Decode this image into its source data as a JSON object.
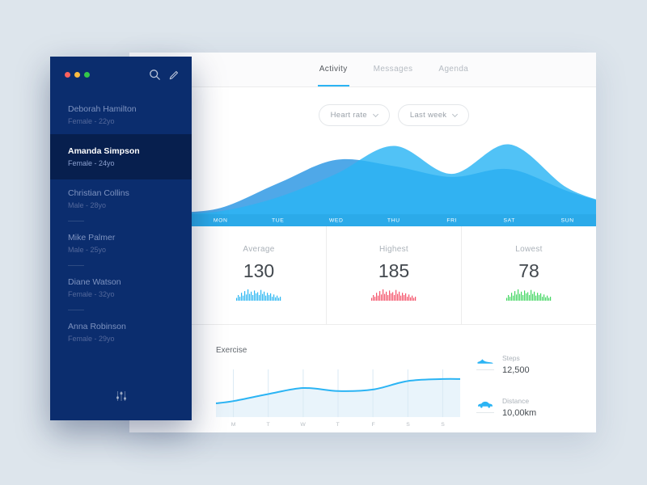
{
  "window": {
    "controls": [
      {
        "name": "close",
        "color": "#FC605C"
      },
      {
        "name": "minimize",
        "color": "#FDBC40"
      },
      {
        "name": "maximize",
        "color": "#34C749"
      }
    ]
  },
  "sidebar": {
    "patients": [
      {
        "name": "Deborah Hamilton",
        "meta": "Female - 22yo",
        "selected": false,
        "divider": false
      },
      {
        "name": "Amanda Simpson",
        "meta": "Female - 24yo",
        "selected": true,
        "divider": false
      },
      {
        "name": "Christian Collins",
        "meta": "Male - 28yo",
        "selected": false,
        "divider": true
      },
      {
        "name": "Mike Palmer",
        "meta": "Male - 25yo",
        "selected": false,
        "divider": true
      },
      {
        "name": "Diane Watson",
        "meta": "Female - 32yo",
        "selected": false,
        "divider": true
      },
      {
        "name": "Anna Robinson",
        "meta": "Female - 29yo",
        "selected": false,
        "divider": false
      }
    ]
  },
  "header": {
    "tabs": [
      {
        "label": "Activity",
        "active": true
      },
      {
        "label": "Messages",
        "active": false
      },
      {
        "label": "Agenda",
        "active": false
      }
    ]
  },
  "filters": {
    "metric": "Heart rate",
    "range": "Last week"
  },
  "chart_data": [
    {
      "type": "area",
      "title": "Heart rate - Last week",
      "x": [
        "MON",
        "TUE",
        "WED",
        "THU",
        "FRI",
        "SAT",
        "SUN"
      ],
      "series": [
        {
          "name": "heart-rate-layer-back",
          "color": "#4FA8E8",
          "values": [
            8,
            40,
            70,
            62,
            48,
            58,
            30
          ]
        },
        {
          "name": "heart-rate-layer-front",
          "color": "#2BB5F4",
          "values": [
            4,
            22,
            52,
            88,
            52,
            90,
            34
          ]
        }
      ],
      "ylim": [
        0,
        100
      ],
      "legend": "none",
      "grid": false
    },
    {
      "type": "line",
      "title": "Exercise",
      "x": [
        "M",
        "T",
        "W",
        "T",
        "F",
        "S",
        "S"
      ],
      "series": [
        {
          "name": "exercise",
          "color": "#2BB4F4",
          "fill": "#E9F4FB",
          "values": [
            32,
            46,
            58,
            52,
            55,
            72,
            76
          ]
        }
      ],
      "ylim": [
        0,
        100
      ],
      "legend": "none",
      "grid": true
    }
  ],
  "stats": [
    {
      "label": "Average",
      "value": "130",
      "color": "#2CB7F2"
    },
    {
      "label": "Highest",
      "value": "185",
      "color": "#F4536A"
    },
    {
      "label": "Lowest",
      "value": "78",
      "color": "#43D662"
    }
  ],
  "sparkline": [
    25,
    50,
    35,
    70,
    45,
    85,
    55,
    100,
    60,
    80,
    50,
    90,
    65,
    75,
    50,
    95,
    60,
    80,
    45,
    70,
    50,
    65,
    35,
    55,
    30,
    45,
    25,
    35
  ],
  "exercise": {
    "title": "Exercise"
  },
  "metrics": [
    {
      "label": "Steps",
      "value": "12,500",
      "icon": "shoe-icon"
    },
    {
      "label": "Distance",
      "value": "10,00km",
      "icon": "car-icon"
    }
  ],
  "icons": {
    "search": "search-icon",
    "edit": "pencil-icon",
    "logo": "equalizer-icon",
    "dropdown": "chevron-down-icon"
  }
}
